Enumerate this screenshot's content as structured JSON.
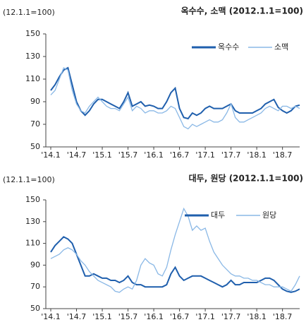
{
  "chart_data": [
    {
      "type": "line",
      "title": "옥수수, 소맥 (2012.1.1=100)",
      "y_label": "(12.1.1=100)",
      "categories": [
        "'14.1",
        null,
        null,
        null,
        null,
        null,
        "'14.7",
        null,
        null,
        null,
        null,
        null,
        "'15.1",
        null,
        null,
        null,
        null,
        null,
        "'15.7",
        null,
        null,
        null,
        null,
        null,
        "'16.1",
        null,
        null,
        null,
        null,
        null,
        "'16.7",
        null,
        null,
        null,
        null,
        null,
        "'17.1",
        null,
        null,
        null,
        null,
        null,
        "'17.7",
        null,
        null,
        null,
        null,
        null,
        "'18.1",
        null,
        null,
        null,
        null,
        null,
        "'18.7",
        null,
        null,
        null,
        null
      ],
      "series": [
        {
          "name": "옥수수",
          "color": "#1f5fad",
          "values": [
            100,
            105,
            112,
            118,
            120,
            105,
            90,
            82,
            78,
            82,
            88,
            92,
            92,
            90,
            88,
            86,
            84,
            90,
            98,
            86,
            88,
            90,
            86,
            87,
            86,
            84,
            84,
            90,
            98,
            102,
            84,
            76,
            75,
            80,
            78,
            80,
            84,
            86,
            84,
            84,
            84,
            86,
            88,
            82,
            80,
            80,
            80,
            80,
            82,
            84,
            88,
            90,
            92,
            85,
            82,
            80,
            82,
            86,
            87
          ]
        },
        {
          "name": "소맥",
          "color": "#8ab8e6",
          "values": [
            96,
            100,
            110,
            120,
            118,
            100,
            88,
            82,
            80,
            86,
            90,
            94,
            90,
            86,
            84,
            84,
            82,
            88,
            94,
            82,
            86,
            84,
            80,
            82,
            82,
            80,
            80,
            82,
            86,
            84,
            76,
            68,
            66,
            70,
            68,
            70,
            72,
            74,
            72,
            72,
            74,
            80,
            88,
            76,
            72,
            72,
            74,
            76,
            78,
            80,
            84,
            86,
            84,
            82,
            86,
            86,
            84,
            86,
            84
          ]
        }
      ],
      "ylim": [
        50,
        150
      ],
      "yticks": [
        50,
        70,
        90,
        110,
        130,
        150
      ],
      "legend": "upper right"
    },
    {
      "type": "line",
      "title": "대두, 원당 (2012.1.1=100)",
      "y_label": "(12.1.1=100)",
      "categories": [
        "'14.1",
        null,
        null,
        null,
        null,
        null,
        "'14.7",
        null,
        null,
        null,
        null,
        null,
        "'15.1",
        null,
        null,
        null,
        null,
        null,
        "'15.7",
        null,
        null,
        null,
        null,
        null,
        "'16.1",
        null,
        null,
        null,
        null,
        null,
        "'16.7",
        null,
        null,
        null,
        null,
        null,
        "'17.1",
        null,
        null,
        null,
        null,
        null,
        "'17.7",
        null,
        null,
        null,
        null,
        null,
        "'18.1",
        null,
        null,
        null,
        null,
        null,
        "'18.7",
        null,
        null,
        null,
        null
      ],
      "series": [
        {
          "name": "대두",
          "color": "#1f5fad",
          "values": [
            102,
            108,
            112,
            116,
            114,
            110,
            100,
            90,
            80,
            80,
            82,
            80,
            78,
            78,
            76,
            76,
            74,
            76,
            80,
            74,
            72,
            72,
            70,
            70,
            70,
            70,
            70,
            72,
            82,
            88,
            80,
            76,
            78,
            80,
            80,
            80,
            78,
            76,
            74,
            72,
            70,
            72,
            76,
            72,
            72,
            74,
            74,
            74,
            74,
            76,
            78,
            78,
            76,
            72,
            68,
            66,
            65,
            66,
            68
          ]
        },
        {
          "name": "원당",
          "color": "#8ab8e6",
          "values": [
            96,
            98,
            100,
            104,
            106,
            104,
            100,
            94,
            90,
            84,
            80,
            76,
            74,
            72,
            70,
            66,
            65,
            68,
            70,
            68,
            76,
            90,
            96,
            92,
            90,
            82,
            80,
            88,
            104,
            118,
            130,
            142,
            135,
            122,
            126,
            122,
            124,
            112,
            102,
            96,
            90,
            86,
            82,
            80,
            80,
            78,
            78,
            76,
            76,
            74,
            72,
            72,
            70,
            70,
            70,
            68,
            66,
            72,
            80
          ]
        }
      ],
      "ylim": [
        50,
        150
      ],
      "yticks": [
        50,
        70,
        90,
        110,
        130,
        150
      ],
      "legend": "upper right"
    }
  ]
}
